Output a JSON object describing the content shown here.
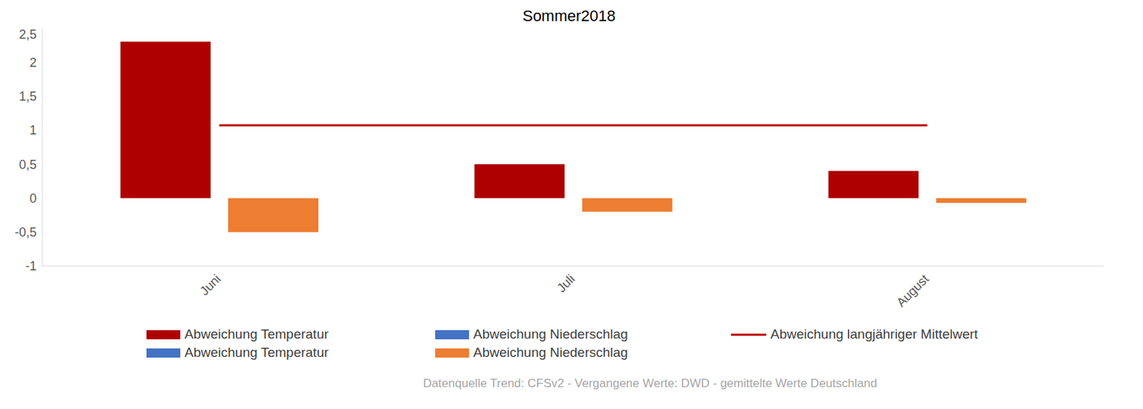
{
  "chart_data": {
    "type": "bar",
    "title": "Sommer2018",
    "source": "Datenquelle Trend: CFSv2 - Vergangene Werte: DWD - gemittelte Werte Deutschland",
    "categories": [
      "Juni",
      "Juli",
      "August"
    ],
    "series": [
      {
        "name": "Abweichung Temperatur",
        "color": "#ae0000",
        "type": "bar",
        "values": [
          2.3,
          0.5,
          0.4
        ]
      },
      {
        "name": "Abweichung Niederschlag",
        "color": "#4472c4",
        "type": "bar",
        "values": [
          null,
          null,
          null
        ]
      },
      {
        "name": "Abweichung langjähriger Mittelwert",
        "color": "#c00000",
        "type": "line",
        "values": [
          1.07,
          1.07,
          1.07
        ]
      },
      {
        "name": "Abweichung Temperatur",
        "color": "#4472c4",
        "type": "bar",
        "values": [
          null,
          null,
          null
        ]
      },
      {
        "name": "Abweichung Niederschlag",
        "color": "#ed7d31",
        "type": "bar",
        "values": [
          -0.5,
          -0.2,
          -0.07
        ]
      }
    ],
    "ylim": [
      -1,
      2.5
    ],
    "yticks": [
      {
        "value": -1,
        "label": "-1"
      },
      {
        "value": -0.5,
        "label": "-0,5"
      },
      0,
      {
        "value": 0.5,
        "label": "0,5"
      },
      1,
      {
        "value": 1.5,
        "label": "1,5"
      },
      2,
      {
        "value": 2.5,
        "label": "2,5"
      }
    ],
    "legend": "bottom",
    "grid": false
  }
}
